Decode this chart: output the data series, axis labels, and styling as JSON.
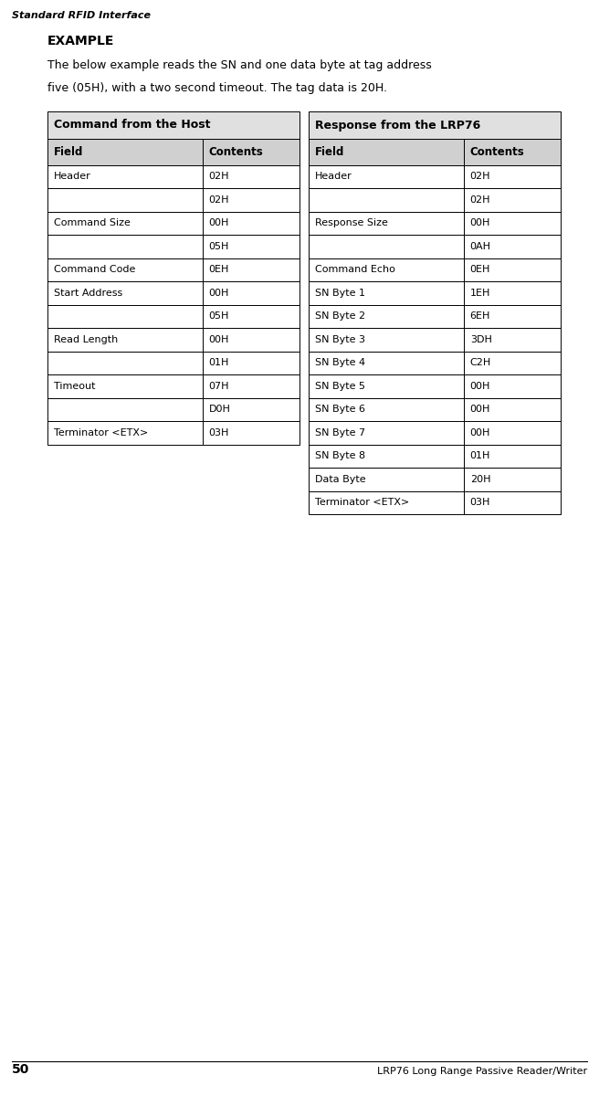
{
  "page_header": "Standard RFID Interface",
  "page_number": "50",
  "page_footer": "LRP76 Long Range Passive Reader/Writer",
  "section_title": "EXAMPLE",
  "description_line1": "The below example reads the SN and one data byte at tag address",
  "description_line2": "five (05H), with a two second timeout. The tag data is 20H.",
  "left_table_title": "Command from the Host",
  "right_table_title": "Response from the LRP76",
  "col_headers": [
    "Field",
    "Contents"
  ],
  "left_rows": [
    [
      "Header",
      "02H"
    ],
    [
      "",
      "02H"
    ],
    [
      "Command Size",
      "00H"
    ],
    [
      "",
      "05H"
    ],
    [
      "Command Code",
      "0EH"
    ],
    [
      "Start Address",
      "00H"
    ],
    [
      "",
      "05H"
    ],
    [
      "Read Length",
      "00H"
    ],
    [
      "",
      "01H"
    ],
    [
      "Timeout",
      "07H"
    ],
    [
      "",
      "D0H"
    ],
    [
      "Terminator <ETX>",
      "03H"
    ]
  ],
  "right_rows": [
    [
      "Header",
      "02H"
    ],
    [
      "",
      "02H"
    ],
    [
      "Response Size",
      "00H"
    ],
    [
      "",
      "0AH"
    ],
    [
      "Command Echo",
      "0EH"
    ],
    [
      "SN Byte 1",
      "1EH"
    ],
    [
      "SN Byte 2",
      "6EH"
    ],
    [
      "SN Byte 3",
      "3DH"
    ],
    [
      "SN Byte 4",
      "C2H"
    ],
    [
      "SN Byte 5",
      "00H"
    ],
    [
      "SN Byte 6",
      "00H"
    ],
    [
      "SN Byte 7",
      "00H"
    ],
    [
      "SN Byte 8",
      "01H"
    ],
    [
      "Data Byte",
      "20H"
    ],
    [
      "Terminator <ETX>",
      "03H"
    ]
  ],
  "title_bg": "#e0e0e0",
  "header_bg": "#d0d0d0",
  "cell_bg": "#ffffff",
  "border_color": "#000000",
  "text_color": "#000000",
  "page_header_font_size": 8,
  "section_title_font_size": 10,
  "description_font_size": 9,
  "table_title_font_size": 9,
  "header_font_size": 8.5,
  "body_font_size": 8,
  "footer_font_size": 8
}
